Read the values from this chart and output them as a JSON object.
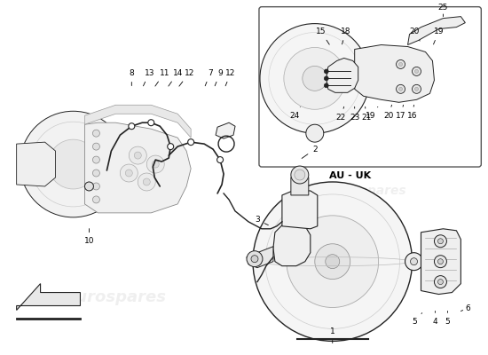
{
  "bg_color": "#ffffff",
  "line_color": "#222222",
  "au_uk_label": "AU - UK",
  "figsize": [
    5.5,
    4.0
  ],
  "dpi": 100,
  "watermark": "eurospares"
}
